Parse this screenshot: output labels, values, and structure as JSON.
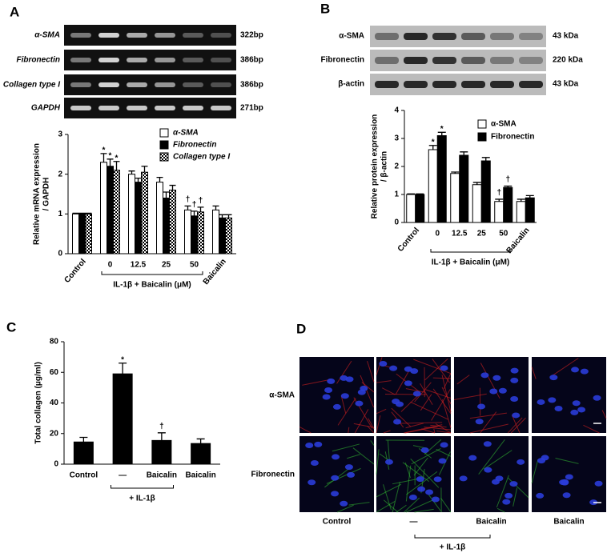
{
  "panels": [
    "A",
    "B",
    "C",
    "D"
  ],
  "gel": {
    "rows": [
      "α-SMA",
      "Fibronectin",
      "Collagen type I",
      "GAPDH"
    ],
    "sizes": [
      "322bp",
      "386bp",
      "386bp",
      "271bp"
    ]
  },
  "blot": {
    "rows": [
      "α-SMA",
      "Fibronectin",
      "β-actin"
    ],
    "sizes": [
      "43 kDa",
      "220 kDa",
      "43 kDa"
    ]
  },
  "chart_data": [
    {
      "type": "bar",
      "ylabel": [
        "Relative mRNA expression",
        "/ GAPDH"
      ],
      "categories": [
        "Control",
        "0",
        "12.5",
        "25",
        "50",
        "Baicalin"
      ],
      "group_label": "IL-1β + Baicalin (μM)",
      "series": [
        {
          "name": "α-SMA",
          "color": "#ffffff",
          "values": [
            1.0,
            2.3,
            2.0,
            1.8,
            1.1,
            1.1
          ],
          "errors": [
            0.02,
            0.22,
            0.08,
            0.12,
            0.1,
            0.1
          ]
        },
        {
          "name": "Fibronectin",
          "color": "#000000",
          "values": [
            1.0,
            2.2,
            1.8,
            1.4,
            0.95,
            0.9
          ],
          "errors": [
            0.02,
            0.18,
            0.1,
            0.15,
            0.12,
            0.08
          ]
        },
        {
          "name": "Collagen type I",
          "color": "#ffffff",
          "pattern": "checker",
          "values": [
            1.0,
            2.1,
            2.05,
            1.6,
            1.05,
            0.9
          ],
          "errors": [
            0.02,
            0.22,
            0.15,
            0.12,
            0.12,
            0.08
          ]
        }
      ],
      "annotations": [
        {
          "text": "*",
          "series": 0,
          "index": 1
        },
        {
          "text": "*",
          "series": 1,
          "index": 1
        },
        {
          "text": "*",
          "series": 2,
          "index": 1
        },
        {
          "text": "†",
          "series": 0,
          "index": 4
        },
        {
          "text": "†",
          "series": 1,
          "index": 4
        },
        {
          "text": "†",
          "series": 2,
          "index": 4
        }
      ],
      "ylim": [
        0,
        3
      ],
      "yticks": [
        0,
        1,
        2,
        3
      ]
    },
    {
      "type": "bar",
      "ylabel": [
        "Relative protein expression",
        "/ β-actin"
      ],
      "categories": [
        "Control",
        "0",
        "12.5",
        "25",
        "50",
        "Baicalin"
      ],
      "group_label": "IL-1β + Baicalin (μM)",
      "series": [
        {
          "name": "α-SMA",
          "color": "#ffffff",
          "values": [
            1.0,
            2.6,
            1.75,
            1.35,
            0.75,
            0.75
          ],
          "errors": [
            0.02,
            0.15,
            0.05,
            0.08,
            0.08,
            0.08
          ]
        },
        {
          "name": "Fibronectin",
          "color": "#000000",
          "values": [
            1.0,
            3.1,
            2.4,
            2.2,
            1.25,
            0.88
          ],
          "errors": [
            0.02,
            0.12,
            0.12,
            0.12,
            0.05,
            0.08
          ]
        }
      ],
      "annotations": [
        {
          "text": "*",
          "series": 0,
          "index": 1
        },
        {
          "text": "*",
          "series": 1,
          "index": 1
        },
        {
          "text": "†",
          "series": 0,
          "index": 4
        },
        {
          "text": "†",
          "series": 1,
          "index": 4
        }
      ],
      "ylim": [
        0,
        4
      ],
      "yticks": [
        0,
        1,
        2,
        3,
        4
      ]
    },
    {
      "type": "bar",
      "ylabel": [
        "Total collagen (μg/ml)"
      ],
      "categories": [
        "Control",
        "—",
        "Baicalin",
        "Baicalin"
      ],
      "group_label": "+ IL-1β",
      "values": [
        14.5,
        59,
        15.5,
        13.5
      ],
      "errors": [
        3,
        7,
        5,
        3
      ],
      "color": "#000000",
      "annotations": [
        {
          "text": "*",
          "index": 1
        },
        {
          "text": "†",
          "index": 2
        }
      ],
      "ylim": [
        0,
        80
      ],
      "yticks": [
        0,
        20,
        40,
        60,
        80
      ]
    }
  ],
  "images": {
    "rows": [
      "α-SMA",
      "Fibronectin"
    ],
    "columns": [
      "Control",
      "—",
      "Baicalin",
      "Baicalin"
    ],
    "group_label": "+ IL-1β"
  }
}
